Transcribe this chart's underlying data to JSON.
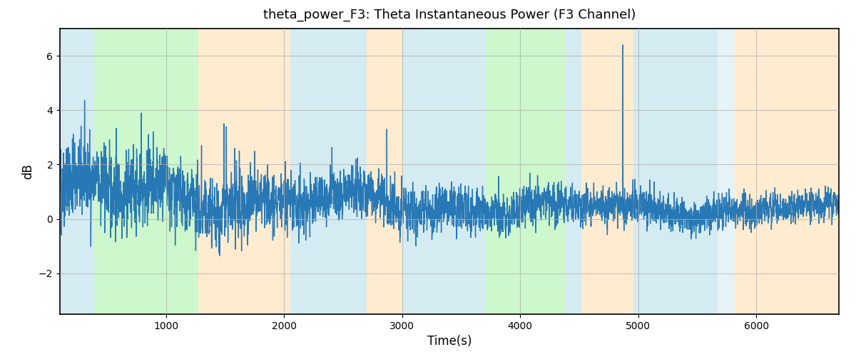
{
  "title": "theta_power_F3: Theta Instantaneous Power (F3 Channel)",
  "xlabel": "Time(s)",
  "ylabel": "dB",
  "xlim": [
    100,
    6700
  ],
  "ylim": [
    -3.5,
    7.0
  ],
  "background_color": "#ffffff",
  "line_color": "#2878b5",
  "line_width": 1.0,
  "grid_color": "#b0b0b0",
  "grid_alpha": 0.7,
  "yticks": [
    -2,
    0,
    2,
    4,
    6
  ],
  "xticks": [
    1000,
    2000,
    3000,
    4000,
    5000,
    6000
  ],
  "seed": 42,
  "colored_bands": [
    {
      "xmin": 100,
      "xmax": 390,
      "color": "#add8e6",
      "alpha": 0.5
    },
    {
      "xmin": 390,
      "xmax": 1270,
      "color": "#90ee90",
      "alpha": 0.45
    },
    {
      "xmin": 1270,
      "xmax": 2050,
      "color": "#ffd9a0",
      "alpha": 0.5
    },
    {
      "xmin": 2050,
      "xmax": 2700,
      "color": "#add8e6",
      "alpha": 0.5
    },
    {
      "xmin": 2700,
      "xmax": 3000,
      "color": "#ffd9a0",
      "alpha": 0.5
    },
    {
      "xmin": 3000,
      "xmax": 3700,
      "color": "#add8e6",
      "alpha": 0.5
    },
    {
      "xmin": 3700,
      "xmax": 4380,
      "color": "#90ee90",
      "alpha": 0.45
    },
    {
      "xmin": 4380,
      "xmax": 4520,
      "color": "#add8e6",
      "alpha": 0.5
    },
    {
      "xmin": 4520,
      "xmax": 4960,
      "color": "#ffd9a0",
      "alpha": 0.5
    },
    {
      "xmin": 4960,
      "xmax": 5670,
      "color": "#add8e6",
      "alpha": 0.5
    },
    {
      "xmin": 5670,
      "xmax": 5820,
      "color": "#add8e6",
      "alpha": 0.3
    },
    {
      "xmin": 5820,
      "xmax": 6700,
      "color": "#ffd9a0",
      "alpha": 0.5
    }
  ]
}
